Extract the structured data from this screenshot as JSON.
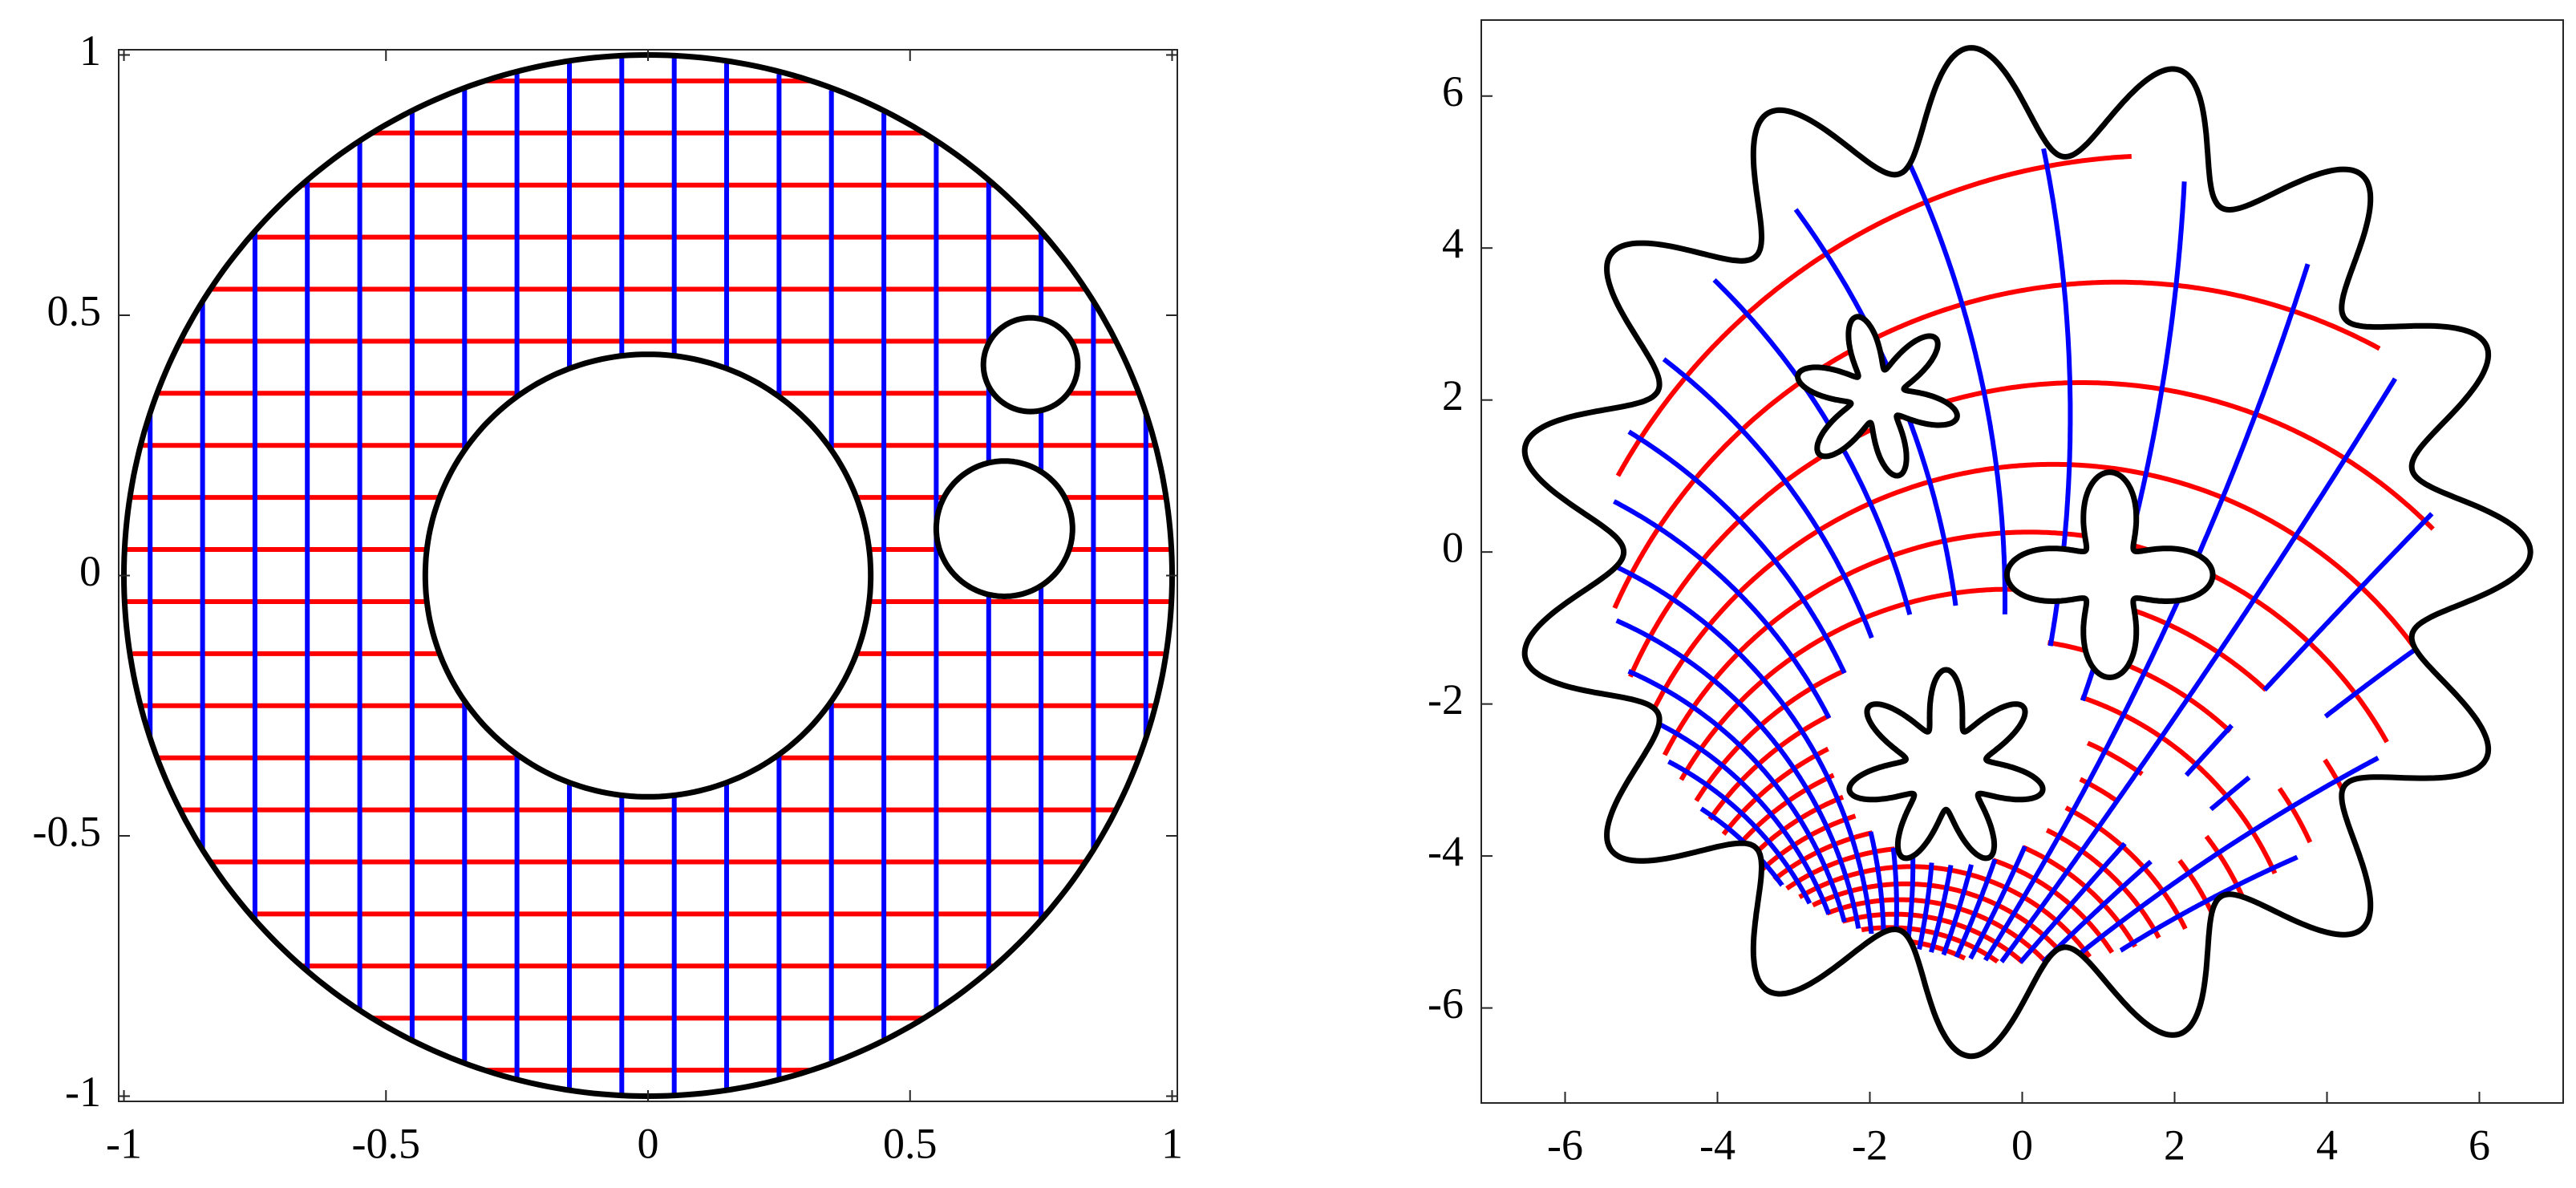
{
  "chart_data": [
    {
      "type": "grid",
      "xlim": [
        -1.01,
        1.01
      ],
      "ylim": [
        -1.01,
        1.01
      ],
      "xticks": [
        -1,
        -0.5,
        0,
        0.5,
        1
      ],
      "yticks": [
        -1,
        -0.5,
        0,
        0.5,
        1
      ],
      "line_colors": {
        "horizontal": "#ff0000",
        "vertical": "#0000ff",
        "boundary": "#000000"
      }
    },
    {
      "type": "mapped-grid",
      "xlim": [
        -7.1,
        7.1
      ],
      "ylim": [
        -7.25,
        7
      ],
      "xticks": [
        -6,
        -4,
        -2,
        0,
        2,
        4,
        6
      ],
      "yticks": [
        -6,
        -4,
        -2,
        0,
        2,
        4,
        6
      ],
      "line_colors": {
        "horizontal": "#ff0000",
        "vertical": "#0000ff",
        "boundary": "#000000"
      }
    }
  ]
}
